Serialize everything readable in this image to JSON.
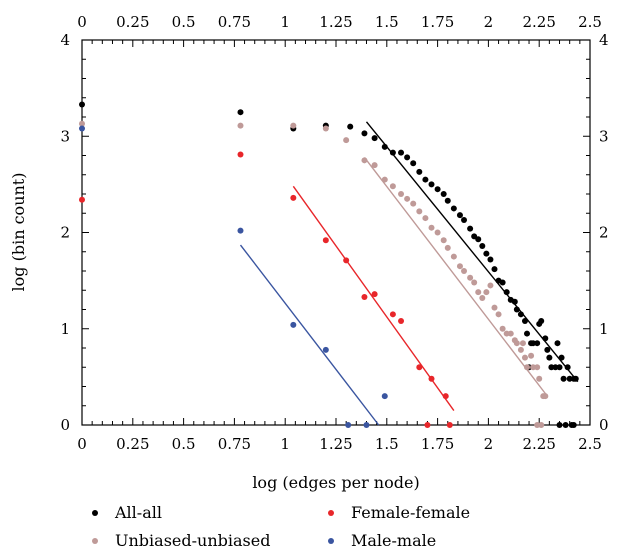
{
  "chart_data": {
    "type": "scatter",
    "title": "",
    "xlabel": "log (edges per node)",
    "ylabel": "log (bin count)",
    "xlim": [
      0,
      2.5
    ],
    "ylim": [
      0,
      4
    ],
    "x_ticks": [
      "0",
      "0.25",
      "0.5",
      "0.75",
      "1",
      "1.25",
      "1.5",
      "1.75",
      "2",
      "2.25",
      "2.5"
    ],
    "y_ticks": [
      "0",
      "1",
      "2",
      "3",
      "4"
    ],
    "grid": false,
    "legend_position": "bottom",
    "series": [
      {
        "name": "All-all",
        "color": "#000000",
        "points": [
          [
            0,
            3.33
          ],
          [
            0.78,
            3.25
          ],
          [
            1.04,
            3.08
          ],
          [
            1.2,
            3.11
          ],
          [
            1.32,
            3.1
          ],
          [
            1.39,
            3.03
          ],
          [
            1.44,
            2.98
          ],
          [
            1.49,
            2.89
          ],
          [
            1.53,
            2.83
          ],
          [
            1.57,
            2.83
          ],
          [
            1.6,
            2.78
          ],
          [
            1.63,
            2.72
          ],
          [
            1.66,
            2.63
          ],
          [
            1.69,
            2.55
          ],
          [
            1.72,
            2.5
          ],
          [
            1.75,
            2.45
          ],
          [
            1.78,
            2.4
          ],
          [
            1.8,
            2.33
          ],
          [
            1.83,
            2.25
          ],
          [
            1.86,
            2.18
          ],
          [
            1.88,
            2.13
          ],
          [
            1.91,
            2.04
          ],
          [
            1.93,
            1.96
          ],
          [
            1.95,
            1.93
          ],
          [
            1.97,
            1.86
          ],
          [
            1.99,
            1.78
          ],
          [
            2.01,
            1.72
          ],
          [
            2.03,
            1.62
          ],
          [
            2.05,
            1.5
          ],
          [
            2.07,
            1.48
          ],
          [
            2.09,
            1.38
          ],
          [
            2.11,
            1.3
          ],
          [
            2.13,
            1.28
          ],
          [
            2.14,
            1.2
          ],
          [
            2.16,
            1.15
          ],
          [
            2.18,
            1.08
          ],
          [
            2.19,
            0.95
          ],
          [
            2.21,
            0.85
          ],
          [
            2.22,
            0.85
          ],
          [
            2.24,
            0.85
          ],
          [
            2.25,
            1.05
          ],
          [
            2.26,
            1.08
          ],
          [
            2.28,
            0.9
          ],
          [
            2.29,
            0.78
          ],
          [
            2.3,
            0.7
          ],
          [
            2.31,
            0.6
          ],
          [
            2.33,
            0.6
          ],
          [
            2.34,
            0.85
          ],
          [
            2.35,
            0.6
          ],
          [
            2.36,
            0.7
          ],
          [
            2.37,
            0.48
          ],
          [
            2.39,
            0.6
          ],
          [
            2.4,
            0.48
          ],
          [
            2.42,
            0.48
          ],
          [
            2.43,
            0.48
          ],
          [
            2.2,
            0.6
          ],
          [
            2.35,
            0.0
          ],
          [
            2.38,
            0.0
          ],
          [
            2.41,
            0.0
          ],
          [
            2.42,
            0.0
          ]
        ],
        "fit": [
          [
            1.4,
            3.15
          ],
          [
            2.44,
            0.45
          ]
        ]
      },
      {
        "name": "Unbiased-unbiased",
        "color": "#bf9a98",
        "points": [
          [
            0,
            3.13
          ],
          [
            0.78,
            3.11
          ],
          [
            1.04,
            3.11
          ],
          [
            1.2,
            3.08
          ],
          [
            1.3,
            2.96
          ],
          [
            1.39,
            2.75
          ],
          [
            1.44,
            2.7
          ],
          [
            1.49,
            2.55
          ],
          [
            1.53,
            2.48
          ],
          [
            1.57,
            2.4
          ],
          [
            1.6,
            2.35
          ],
          [
            1.63,
            2.3
          ],
          [
            1.66,
            2.22
          ],
          [
            1.69,
            2.15
          ],
          [
            1.72,
            2.05
          ],
          [
            1.75,
            2.0
          ],
          [
            1.78,
            1.92
          ],
          [
            1.8,
            1.84
          ],
          [
            1.83,
            1.75
          ],
          [
            1.86,
            1.65
          ],
          [
            1.88,
            1.6
          ],
          [
            1.91,
            1.53
          ],
          [
            1.93,
            1.48
          ],
          [
            1.95,
            1.38
          ],
          [
            1.97,
            1.32
          ],
          [
            1.99,
            1.38
          ],
          [
            2.01,
            1.45
          ],
          [
            2.03,
            1.22
          ],
          [
            2.05,
            1.15
          ],
          [
            2.07,
            1.0
          ],
          [
            2.09,
            0.95
          ],
          [
            2.11,
            0.95
          ],
          [
            2.13,
            0.88
          ],
          [
            2.14,
            0.85
          ],
          [
            2.16,
            0.78
          ],
          [
            2.18,
            0.7
          ],
          [
            2.19,
            0.6
          ],
          [
            2.21,
            0.72
          ],
          [
            2.22,
            0.6
          ],
          [
            2.24,
            0.6
          ],
          [
            2.25,
            0.48
          ],
          [
            2.27,
            0.3
          ],
          [
            2.28,
            0.3
          ],
          [
            2.24,
            0.0
          ],
          [
            2.26,
            0.0
          ],
          [
            2.17,
            0.85
          ]
        ],
        "fit": [
          [
            1.39,
            2.78
          ],
          [
            2.29,
            0.3
          ]
        ]
      },
      {
        "name": "Female-female",
        "color": "#e8262a",
        "points": [
          [
            0,
            2.34
          ],
          [
            0.78,
            2.81
          ],
          [
            1.04,
            2.36
          ],
          [
            1.2,
            1.92
          ],
          [
            1.3,
            1.71
          ],
          [
            1.39,
            1.33
          ],
          [
            1.44,
            1.36
          ],
          [
            1.53,
            1.15
          ],
          [
            1.57,
            1.08
          ],
          [
            1.66,
            0.6
          ],
          [
            1.72,
            0.48
          ],
          [
            1.79,
            0.3
          ],
          [
            1.7,
            0.0
          ],
          [
            1.81,
            0.0
          ]
        ],
        "fit": [
          [
            1.04,
            2.48
          ],
          [
            1.83,
            0.15
          ]
        ]
      },
      {
        "name": "Male-male",
        "color": "#3a55a0",
        "points": [
          [
            0,
            3.08
          ],
          [
            0.78,
            2.02
          ],
          [
            1.04,
            1.04
          ],
          [
            1.2,
            0.78
          ],
          [
            1.49,
            0.3
          ],
          [
            1.31,
            0.0
          ],
          [
            1.4,
            0.0
          ]
        ],
        "fit": [
          [
            0.78,
            1.87
          ],
          [
            1.46,
            0.0
          ]
        ]
      }
    ]
  }
}
